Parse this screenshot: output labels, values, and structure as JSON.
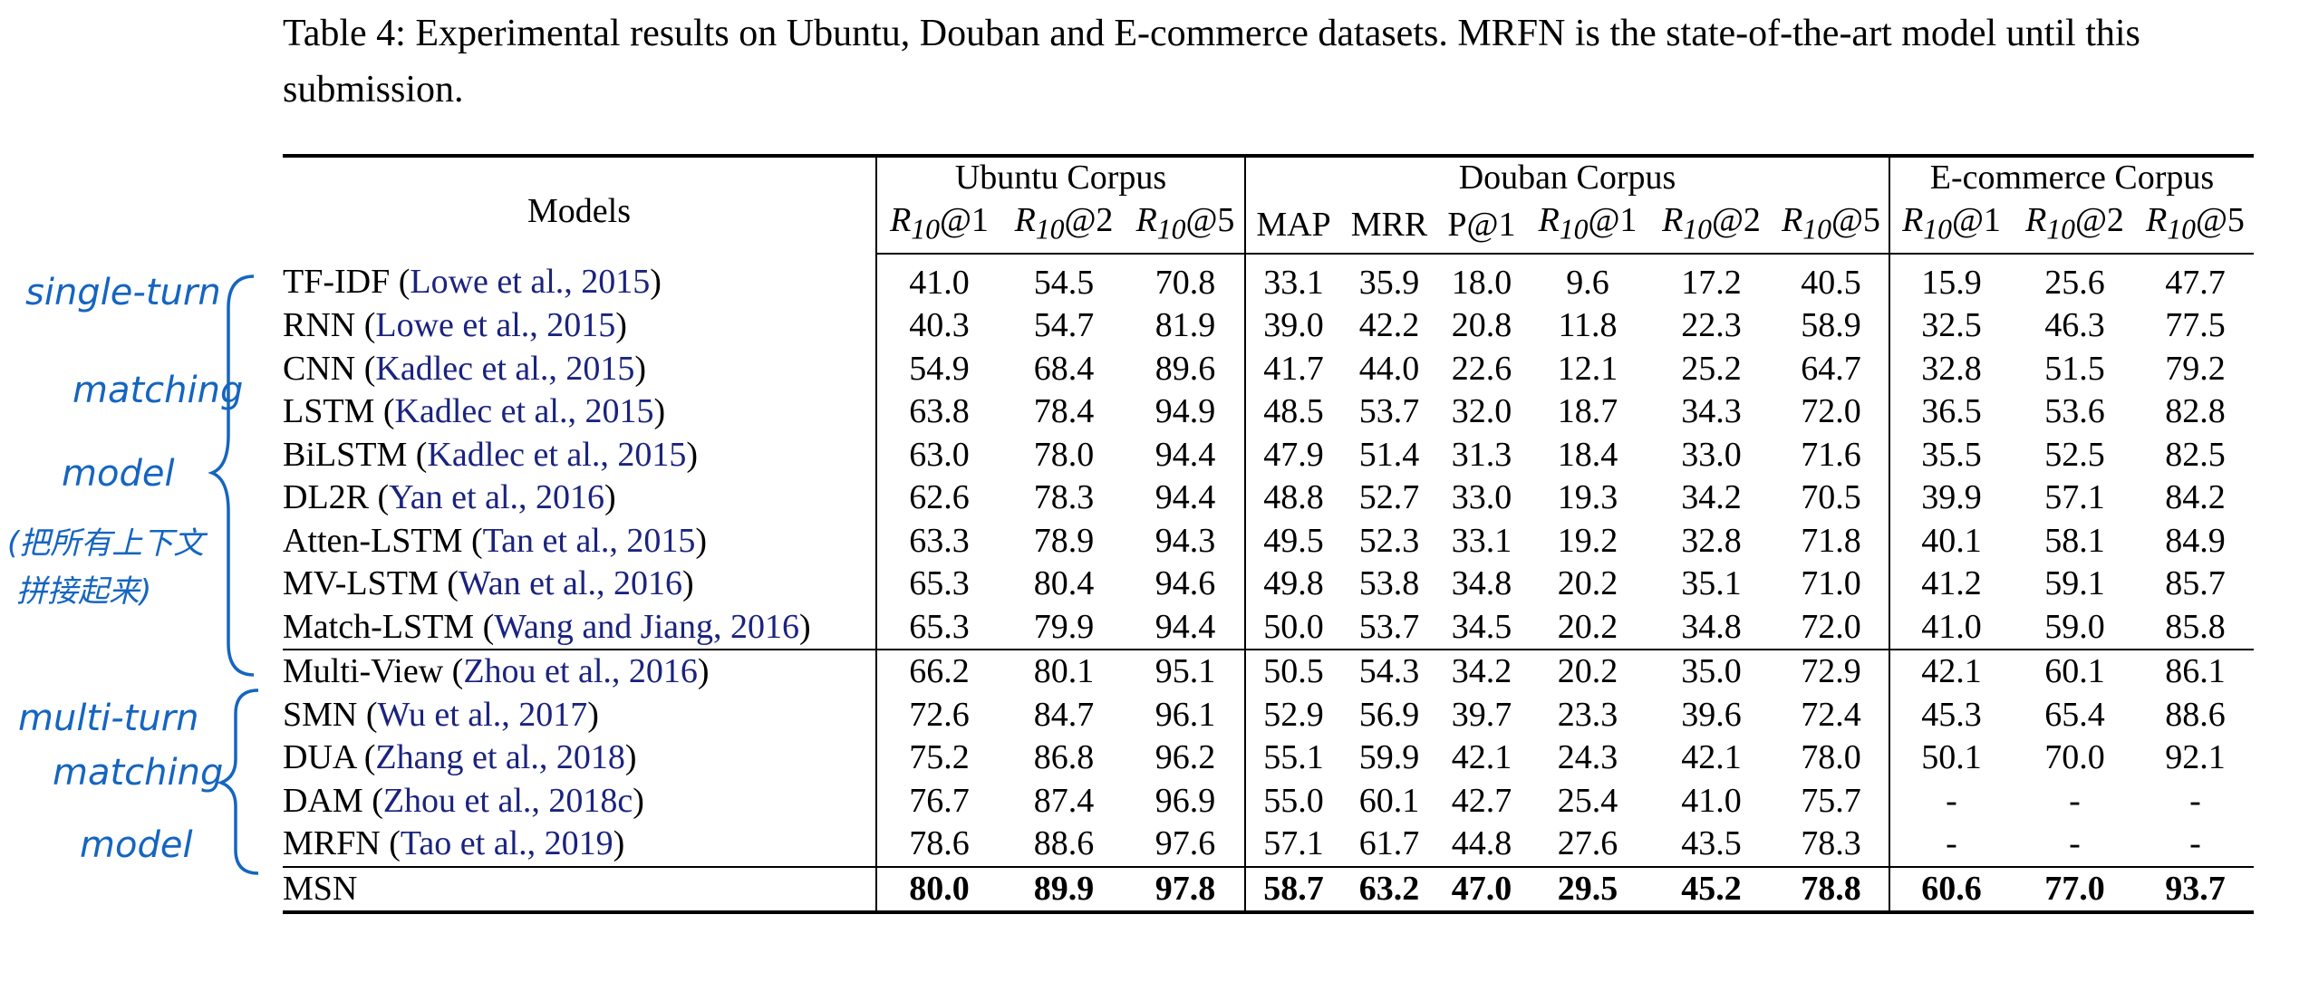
{
  "caption": "Table 4: Experimental results on Ubuntu, Douban and E-commerce datasets. MRFN is the state-of-the-art model until this submission.",
  "header": {
    "models_label": "Models",
    "groups": [
      "Ubuntu Corpus",
      "Douban Corpus",
      "E-commerce Corpus"
    ],
    "metric_R": "R",
    "metric_sub": "10",
    "metric_at1": "@1",
    "metric_at2": "@2",
    "metric_at5": "@5",
    "metric_map": "MAP",
    "metric_mrr": "MRR",
    "metric_p1": "P@1"
  },
  "rows": [
    {
      "model": "TF-IDF",
      "cite": "Lowe et al., 2015",
      "u": [
        "41.0",
        "54.5",
        "70.8"
      ],
      "d": [
        "33.1",
        "35.9",
        "18.0",
        "9.6",
        "17.2",
        "40.5"
      ],
      "e": [
        "15.9",
        "25.6",
        "47.7"
      ]
    },
    {
      "model": "RNN",
      "cite": "Lowe et al., 2015",
      "u": [
        "40.3",
        "54.7",
        "81.9"
      ],
      "d": [
        "39.0",
        "42.2",
        "20.8",
        "11.8",
        "22.3",
        "58.9"
      ],
      "e": [
        "32.5",
        "46.3",
        "77.5"
      ]
    },
    {
      "model": "CNN",
      "cite": "Kadlec et al., 2015",
      "u": [
        "54.9",
        "68.4",
        "89.6"
      ],
      "d": [
        "41.7",
        "44.0",
        "22.6",
        "12.1",
        "25.2",
        "64.7"
      ],
      "e": [
        "32.8",
        "51.5",
        "79.2"
      ]
    },
    {
      "model": "LSTM",
      "cite": "Kadlec et al., 2015",
      "u": [
        "63.8",
        "78.4",
        "94.9"
      ],
      "d": [
        "48.5",
        "53.7",
        "32.0",
        "18.7",
        "34.3",
        "72.0"
      ],
      "e": [
        "36.5",
        "53.6",
        "82.8"
      ]
    },
    {
      "model": "BiLSTM",
      "cite": "Kadlec et al., 2015",
      "u": [
        "63.0",
        "78.0",
        "94.4"
      ],
      "d": [
        "47.9",
        "51.4",
        "31.3",
        "18.4",
        "33.0",
        "71.6"
      ],
      "e": [
        "35.5",
        "52.5",
        "82.5"
      ]
    },
    {
      "model": "DL2R",
      "cite": "Yan et al., 2016",
      "u": [
        "62.6",
        "78.3",
        "94.4"
      ],
      "d": [
        "48.8",
        "52.7",
        "33.0",
        "19.3",
        "34.2",
        "70.5"
      ],
      "e": [
        "39.9",
        "57.1",
        "84.2"
      ]
    },
    {
      "model": "Atten-LSTM",
      "cite": "Tan et al., 2015",
      "u": [
        "63.3",
        "78.9",
        "94.3"
      ],
      "d": [
        "49.5",
        "52.3",
        "33.1",
        "19.2",
        "32.8",
        "71.8"
      ],
      "e": [
        "40.1",
        "58.1",
        "84.9"
      ]
    },
    {
      "model": "MV-LSTM",
      "cite": "Wan et al., 2016",
      "u": [
        "65.3",
        "80.4",
        "94.6"
      ],
      "d": [
        "49.8",
        "53.8",
        "34.8",
        "20.2",
        "35.1",
        "71.0"
      ],
      "e": [
        "41.2",
        "59.1",
        "85.7"
      ]
    },
    {
      "model": "Match-LSTM",
      "cite": "Wang and Jiang, 2016",
      "u": [
        "65.3",
        "79.9",
        "94.4"
      ],
      "d": [
        "50.0",
        "53.7",
        "34.5",
        "20.2",
        "34.8",
        "72.0"
      ],
      "e": [
        "41.0",
        "59.0",
        "85.8"
      ]
    },
    {
      "model": "Multi-View",
      "cite": "Zhou et al., 2016",
      "u": [
        "66.2",
        "80.1",
        "95.1"
      ],
      "d": [
        "50.5",
        "54.3",
        "34.2",
        "20.2",
        "35.0",
        "72.9"
      ],
      "e": [
        "42.1",
        "60.1",
        "86.1"
      ]
    },
    {
      "model": "SMN",
      "cite": "Wu et al., 2017",
      "u": [
        "72.6",
        "84.7",
        "96.1"
      ],
      "d": [
        "52.9",
        "56.9",
        "39.7",
        "23.3",
        "39.6",
        "72.4"
      ],
      "e": [
        "45.3",
        "65.4",
        "88.6"
      ]
    },
    {
      "model": "DUA",
      "cite": "Zhang et al., 2018",
      "u": [
        "75.2",
        "86.8",
        "96.2"
      ],
      "d": [
        "55.1",
        "59.9",
        "42.1",
        "24.3",
        "42.1",
        "78.0"
      ],
      "e": [
        "50.1",
        "70.0",
        "92.1"
      ]
    },
    {
      "model": "DAM",
      "cite": "Zhou et al., 2018c",
      "u": [
        "76.7",
        "87.4",
        "96.9"
      ],
      "d": [
        "55.0",
        "60.1",
        "42.7",
        "25.4",
        "41.0",
        "75.7"
      ],
      "e": [
        "-",
        "-",
        "-"
      ]
    },
    {
      "model": "MRFN",
      "cite": "Tao et al., 2019",
      "u": [
        "78.6",
        "88.6",
        "97.6"
      ],
      "d": [
        "57.1",
        "61.7",
        "44.8",
        "27.6",
        "43.5",
        "78.3"
      ],
      "e": [
        "-",
        "-",
        "-"
      ]
    },
    {
      "model": "MSN",
      "cite": "",
      "u": [
        "80.0",
        "89.9",
        "97.8"
      ],
      "d": [
        "58.7",
        "63.2",
        "47.0",
        "29.5",
        "45.2",
        "78.8"
      ],
      "e": [
        "60.6",
        "77.0",
        "93.7"
      ]
    }
  ],
  "annotations": {
    "single_1": "single-turn",
    "single_2": "matching",
    "single_3": "model",
    "single_cn_1": "(把所有上下文",
    "single_cn_2": "拼接起来)",
    "multi_1": "multi-turn",
    "multi_2": "matching",
    "multi_3": "model"
  },
  "colors": {
    "citation": "#1a237e",
    "handwriting": "#1565c0"
  }
}
